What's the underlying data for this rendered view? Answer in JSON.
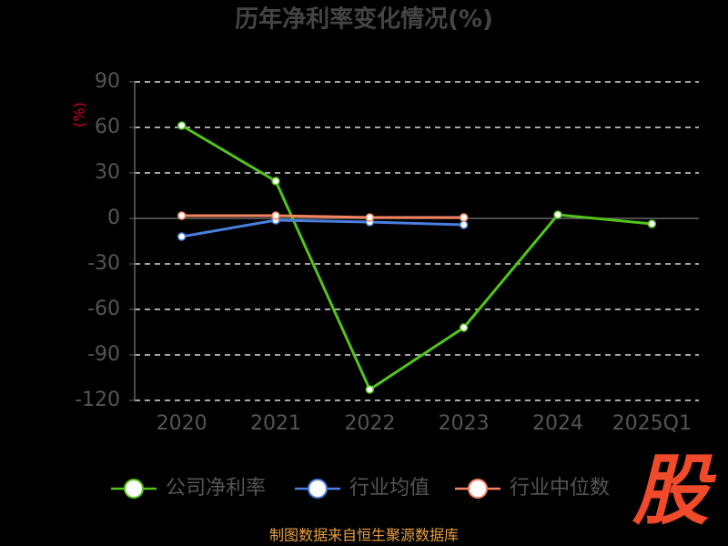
{
  "chart_data": {
    "type": "line",
    "title": "历年净利率变化情况(%)",
    "y_label": "(%)",
    "categories": [
      "2020",
      "2021",
      "2022",
      "2023",
      "2024",
      "2025Q1"
    ],
    "series": [
      {
        "name": "公司净利率",
        "color": "#52c41a",
        "values": [
          61.2,
          24.6,
          -112.8,
          -72,
          2.4,
          -3.6
        ]
      },
      {
        "name": "行业均值",
        "color": "#4a7fe0",
        "values": [
          -12,
          -1.2,
          -2.4,
          -4.2,
          null,
          null
        ]
      },
      {
        "name": "行业中位数",
        "color": "#f4845f",
        "values": [
          1.8,
          1.8,
          0.6,
          0.6,
          null,
          null
        ]
      }
    ],
    "ylim": [
      -120,
      90
    ],
    "yticks": [
      -120,
      -90,
      -60,
      -30,
      0,
      30,
      60,
      90
    ],
    "grid": true,
    "legend": "bottom",
    "source": "制图数据来自恒生聚源数据库",
    "watermark": "股"
  }
}
